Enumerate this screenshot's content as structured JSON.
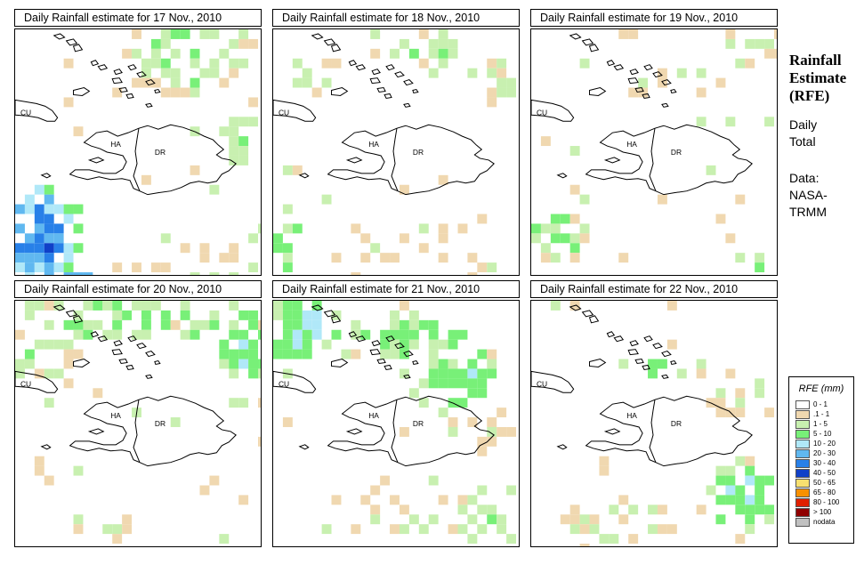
{
  "panels": [
    {
      "title": "Daily Rainfall estimate for  17 Nov., 2010",
      "seed": 17
    },
    {
      "title": "Daily Rainfall estimate for  18 Nov., 2010",
      "seed": 18
    },
    {
      "title": "Daily Rainfall estimate for  19 Nov., 2010",
      "seed": 19
    },
    {
      "title": "Daily Rainfall estimate for  20 Nov., 2010",
      "seed": 20
    },
    {
      "title": "Daily Rainfall estimate for  21 Nov., 2010",
      "seed": 21
    },
    {
      "title": "Daily Rainfall estimate for  22 Nov., 2010",
      "seed": 22
    }
  ],
  "map_labels": {
    "cuba": "CU",
    "haiti": "HA",
    "dominican_republic": "DR"
  },
  "heading": [
    "Rainfall",
    "Estimate",
    "(RFE)"
  ],
  "daily_total": [
    "Daily",
    "Total"
  ],
  "data_source": [
    "Data:",
    "NASA-",
    "TRMM"
  ],
  "legend": {
    "title": "RFE (mm)",
    "items": [
      {
        "label": "0 - 1",
        "color": "#ffffff"
      },
      {
        "label": ".1 - 1",
        "color": "#f0d8b0"
      },
      {
        "label": "1 - 5",
        "color": "#c8f0b0"
      },
      {
        "label": "5 - 10",
        "color": "#78f078"
      },
      {
        "label": "10 - 20",
        "color": "#b0e8f8"
      },
      {
        "label": "20 - 30",
        "color": "#60b8f0"
      },
      {
        "label": "30 - 40",
        "color": "#2880e8"
      },
      {
        "label": "40 - 50",
        "color": "#1040c8"
      },
      {
        "label": "50 - 65",
        "color": "#f8e070"
      },
      {
        "label": "65 - 80",
        "color": "#f89000"
      },
      {
        "label": "80 - 100",
        "color": "#e02000"
      },
      {
        "label": "> 100",
        "color": "#900000"
      },
      {
        "label": "nodata",
        "color": "#c0c0c0"
      }
    ]
  }
}
